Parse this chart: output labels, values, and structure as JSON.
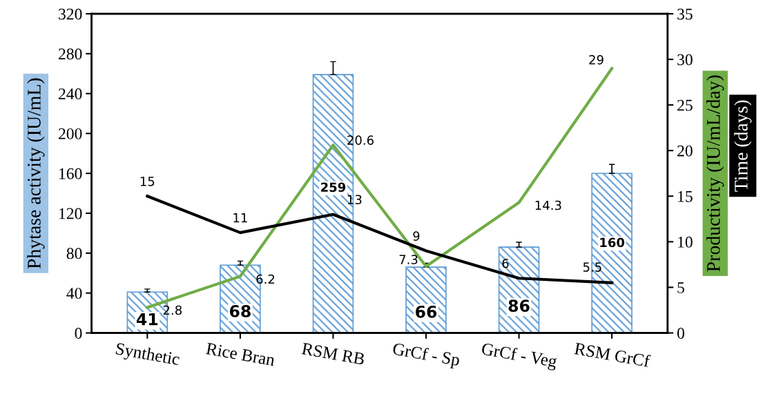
{
  "chart_data": {
    "type": "bar",
    "categories": [
      "Synthetic",
      "Rice Bran",
      "RSM RB",
      "GrCf - Sp",
      "GrCf - Veg",
      "RSM GrCf"
    ],
    "ylabel": "Phytase activity (IU/mL)",
    "y2label": "Productivity (IU/mL/day)",
    "annotations": [
      "Time (days)"
    ],
    "ylim": [
      0,
      320
    ],
    "yticks": [
      0,
      40,
      80,
      120,
      160,
      200,
      240,
      280,
      320
    ],
    "y2lim": [
      0,
      35
    ],
    "y2ticks": [
      0,
      5,
      10,
      15,
      20,
      25,
      30,
      35
    ],
    "grid": false,
    "legend": false,
    "data_labels": true,
    "series": [
      {
        "color": "#5b9bd5",
        "values": [
          41,
          68,
          259,
          66,
          86,
          160
        ],
        "errors": [
          [
            41,
            44
          ],
          [
            68,
            72
          ],
          [
            259,
            272
          ],
          [
            66,
            70
          ],
          [
            86,
            91
          ],
          [
            160,
            169
          ]
        ]
      },
      {
        "type": "line",
        "axis": "y2",
        "color": "#70ad47",
        "values": [
          2.8,
          6.2,
          20.6,
          7.3,
          14.3,
          29
        ]
      },
      {
        "type": "line",
        "axis": "y2",
        "color": "#000000",
        "values": [
          15,
          11,
          13,
          9,
          6,
          5.5
        ]
      }
    ]
  }
}
